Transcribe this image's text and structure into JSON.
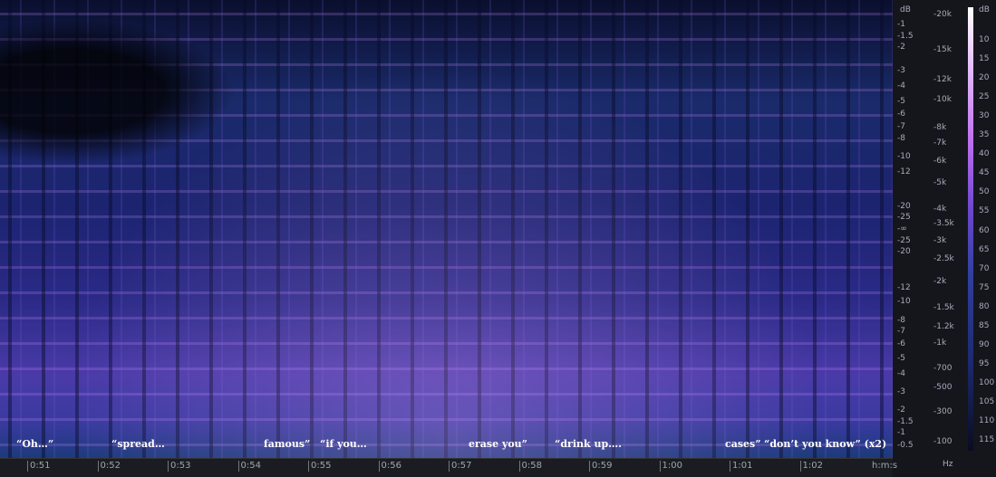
{
  "annotations": [
    "“Oh…”",
    "“spread…",
    "famous”",
    "“if you…",
    "erase you”",
    "“drink up….",
    "cases”",
    "“don’t you know” (x2)"
  ],
  "time_axis": {
    "labels": [
      "0:51",
      "0:52",
      "0:53",
      "0:54",
      "0:55",
      "0:56",
      "0:57",
      "0:58",
      "0:59",
      "1:00",
      "1:01",
      "1:02"
    ],
    "unit": "h:m:s"
  },
  "db_scale": {
    "unit": "dB",
    "labels": [
      "-1",
      "-1.5",
      "-2",
      "-3",
      "-4",
      "-5",
      "-6",
      "-7",
      "-8",
      "-10",
      "-12",
      "-20",
      "-25",
      "-∞",
      "-25",
      "-20",
      "-12",
      "-10",
      "-8",
      "-7",
      "-6",
      "-5",
      "-4",
      "-3",
      "-2",
      "-1.5",
      "-1",
      "-0.5"
    ]
  },
  "hz_scale": {
    "unit": "Hz",
    "labels": [
      "-20k",
      "-15k",
      "-12k",
      "-10k",
      "-8k",
      "-7k",
      "-6k",
      "-5k",
      "-4k",
      "-3.5k",
      "-3k",
      "-2.5k",
      "-2k",
      "-1.5k",
      "-1.2k",
      "-1k",
      "-700",
      "-500",
      "-300",
      "-100"
    ]
  },
  "color_scale": {
    "unit": "dB",
    "labels": [
      "10",
      "15",
      "20",
      "25",
      "30",
      "35",
      "40",
      "45",
      "50",
      "55",
      "60",
      "65",
      "70",
      "75",
      "80",
      "85",
      "90",
      "95",
      "100",
      "105",
      "110",
      "115"
    ]
  }
}
